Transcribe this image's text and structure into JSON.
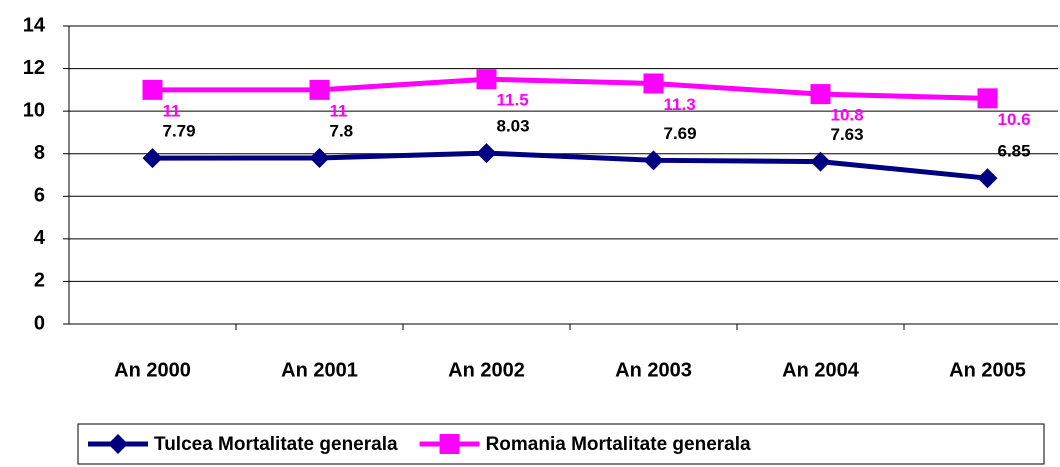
{
  "chart_data": {
    "type": "line",
    "categories": [
      "An 2000",
      "An 2001",
      "An 2002",
      "An 2003",
      "An 2004",
      "An 2005"
    ],
    "series": [
      {
        "name": "Tulcea Mortalitate generala",
        "color": "#000080",
        "marker": "diamond",
        "values": [
          7.79,
          7.8,
          8.03,
          7.69,
          7.63,
          6.85
        ]
      },
      {
        "name": "Romania Mortalitate generala",
        "color": "#ff00ff",
        "marker": "square",
        "values": [
          11,
          11,
          11.5,
          11.3,
          10.8,
          10.6
        ]
      }
    ],
    "ylim": [
      0,
      14
    ],
    "yticks": [
      0,
      2,
      4,
      6,
      8,
      10,
      12,
      14
    ],
    "grid": true
  }
}
